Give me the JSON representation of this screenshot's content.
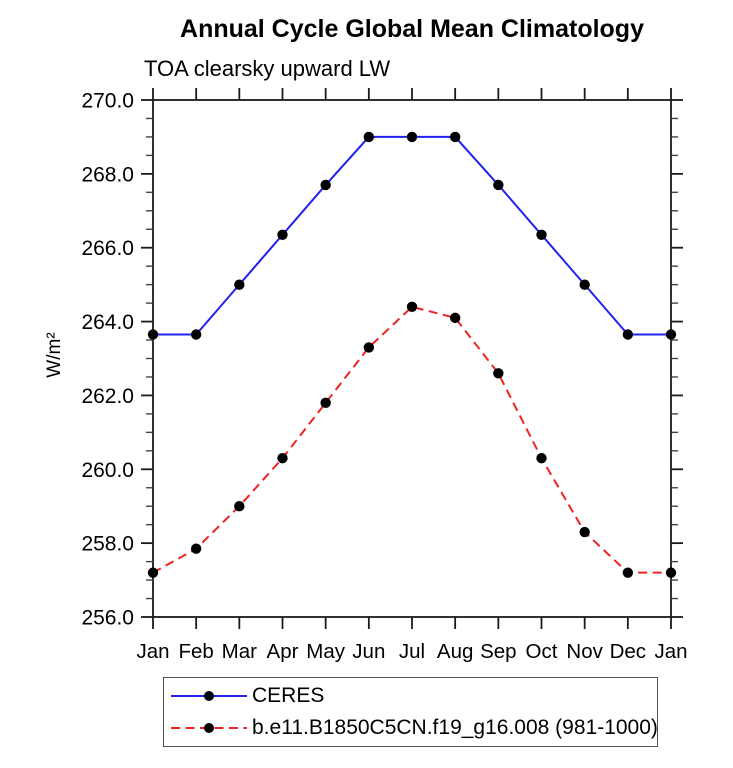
{
  "chart_data": {
    "type": "line",
    "title": "Annual Cycle Global Mean Climatology",
    "subtitle": "TOA clearsky upward LW",
    "ylabel": "W/m²",
    "x": [
      "Jan",
      "Feb",
      "Mar",
      "Apr",
      "May",
      "Jun",
      "Jul",
      "Aug",
      "Sep",
      "Oct",
      "Nov",
      "Dec",
      "Jan"
    ],
    "ylim": [
      256.0,
      270.0
    ],
    "ytick_interval": 2.0,
    "yminor_interval": 0.5,
    "ytick_labels": [
      "256.0",
      "258.0",
      "260.0",
      "262.0",
      "264.0",
      "266.0",
      "268.0",
      "270.0"
    ],
    "grid": false,
    "legend_position": "bottom-left",
    "marker_color": "#000000",
    "series": [
      {
        "name": "CERES",
        "color": "#2222ee",
        "style": "solid",
        "marker": "circle",
        "values": [
          263.65,
          263.65,
          265.0,
          266.35,
          267.7,
          269.0,
          269.0,
          269.0,
          267.7,
          266.35,
          265.0,
          263.65,
          263.65
        ]
      },
      {
        "name": "b.e11.B1850C5CN.f19_g16.008 (981-1000)",
        "color": "#ee2222",
        "style": "dashed",
        "marker": "circle",
        "values": [
          257.2,
          257.85,
          259.0,
          260.3,
          261.8,
          263.3,
          264.4,
          264.1,
          262.6,
          260.3,
          258.3,
          257.2,
          257.2
        ]
      }
    ]
  }
}
